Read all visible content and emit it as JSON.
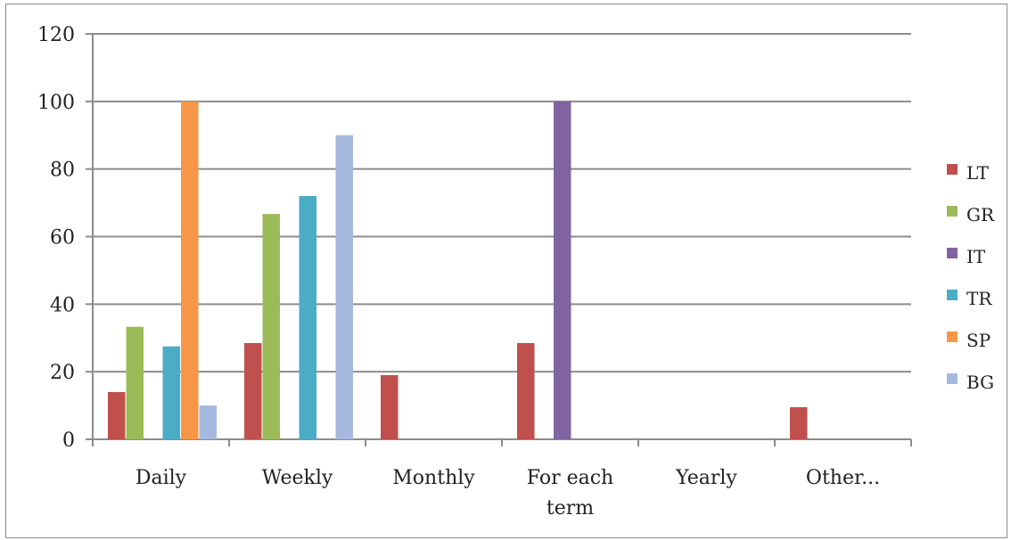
{
  "chart_data": {
    "type": "bar",
    "categories": [
      "Daily",
      "Weekly",
      "Monthly",
      "For each term",
      "Yearly",
      "Other..."
    ],
    "category_lines": [
      [
        "Daily"
      ],
      [
        "Weekly"
      ],
      [
        "Monthly"
      ],
      [
        "For each",
        "term"
      ],
      [
        "Yearly"
      ],
      [
        "Other..."
      ]
    ],
    "series": [
      {
        "name": "LT",
        "color": "#c0504d",
        "values": [
          14,
          28.5,
          19,
          28.5,
          0,
          9.5
        ]
      },
      {
        "name": "GR",
        "color": "#9bbb59",
        "values": [
          33.3,
          66.7,
          0,
          0,
          0,
          0
        ]
      },
      {
        "name": "IT",
        "color": "#8064a2",
        "values": [
          0,
          0,
          0,
          100,
          0,
          0
        ]
      },
      {
        "name": "TR",
        "color": "#4bacc6",
        "values": [
          27.5,
          72,
          0,
          0,
          0,
          0
        ]
      },
      {
        "name": "SP",
        "color": "#f79646",
        "values": [
          100,
          0,
          0,
          0,
          0,
          0
        ]
      },
      {
        "name": "BG",
        "color": "#a5b9de",
        "values": [
          10,
          90,
          0,
          0,
          0,
          0
        ]
      }
    ],
    "ylim": [
      0,
      120
    ],
    "yticks": [
      "0",
      "20",
      "40",
      "60",
      "80",
      "100",
      "120"
    ],
    "grid": true,
    "legend": "right"
  }
}
